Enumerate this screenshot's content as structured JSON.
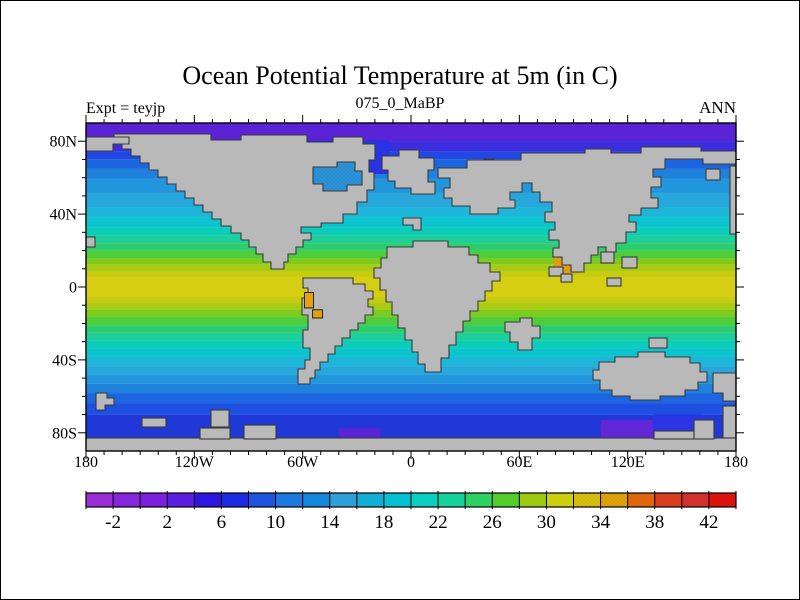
{
  "header": {
    "title": "Ocean Potential Temperature at 5m (in C)",
    "subtitle": "075_0_MaBP",
    "experiment_label": "Expt = teyjp",
    "season_label": "ANN"
  },
  "map": {
    "land_color": "#b9b9b9",
    "coast_color": "#3a3a3a",
    "frame_color": "#000000",
    "x_axis": {
      "tick_labels": [
        "180",
        "120W",
        "60W",
        "0",
        "60E",
        "120E",
        "180"
      ],
      "tick_lons": [
        -180,
        -120,
        -60,
        0,
        60,
        120,
        180
      ],
      "minor_step_deg": 10
    },
    "y_axis": {
      "tick_labels": [
        "80N",
        "40N",
        "0",
        "40S",
        "80S"
      ],
      "tick_lats": [
        80,
        40,
        0,
        -40,
        -80
      ],
      "minor_step_deg": 10
    }
  },
  "colorbar": {
    "units": "C",
    "min": -4,
    "max": 44,
    "step": 2,
    "tick_labels": [
      "-2",
      "2",
      "6",
      "10",
      "14",
      "18",
      "22",
      "26",
      "30",
      "34",
      "38",
      "42"
    ],
    "colors": [
      "#9b2fd6",
      "#8526dc",
      "#7d1fde",
      "#5c1ee0",
      "#2d17e0",
      "#1d2ce2",
      "#1d55e0",
      "#1d79de",
      "#1486dc",
      "#2e9fd8",
      "#12aed4",
      "#04c0d0",
      "#0bcfc0",
      "#16d29b",
      "#2ed163",
      "#52cd2c",
      "#9ecc14",
      "#cdce0d",
      "#d9c40c",
      "#dda70a",
      "#e0660c",
      "#dc3d1c",
      "#d23028",
      "#de120c"
    ],
    "stippled_segments": [
      18,
      19,
      21,
      22
    ]
  },
  "chart_data": {
    "type": "heatmap",
    "title": "Ocean Potential Temperature at 5m (in C)",
    "subtitle": "075_0_MaBP",
    "annotations": [
      "Expt = teyjp",
      "ANN"
    ],
    "units": "degC",
    "projection": "equirectangular",
    "lon_range": [
      -180,
      180
    ],
    "lat_range": [
      -90,
      90
    ],
    "x_tick_labels": [
      "180",
      "120W",
      "60W",
      "0",
      "60E",
      "120E",
      "180"
    ],
    "y_tick_labels": [
      "80N",
      "40N",
      "0",
      "40S",
      "80S"
    ],
    "contour_levels_c": [
      -4,
      -2,
      0,
      2,
      4,
      6,
      8,
      10,
      12,
      14,
      16,
      18,
      20,
      22,
      24,
      26,
      28,
      30,
      32,
      34,
      36,
      38,
      40,
      42,
      44
    ],
    "zonal_mean_temp": {
      "lat": [
        80,
        70,
        60,
        50,
        40,
        30,
        20,
        10,
        0,
        -10,
        -20,
        -30,
        -40,
        -50,
        -60,
        -70,
        -80
      ],
      "temp_c": [
        0,
        4,
        8,
        12,
        16,
        21,
        26,
        28.5,
        29,
        28.5,
        26,
        21,
        16,
        11,
        7,
        4,
        1
      ]
    },
    "ocean_bands": [
      [
        90,
        80.1,
        "#5b23d6"
      ],
      [
        80.1,
        74.6,
        "#3c2ede"
      ],
      [
        74.6,
        70.2,
        "#2347e2"
      ],
      [
        70.2,
        64.8,
        "#1b66e0"
      ],
      [
        64.8,
        59.3,
        "#1e82dd"
      ],
      [
        59.3,
        51.6,
        "#2196dd"
      ],
      [
        51.6,
        43.9,
        "#27a7dc"
      ],
      [
        43.9,
        38.4,
        "#1fb7d9"
      ],
      [
        38.4,
        32.9,
        "#0cc4cf"
      ],
      [
        32.9,
        28.5,
        "#0ccdbb"
      ],
      [
        28.5,
        24.1,
        "#1ecf9c"
      ],
      [
        24.1,
        19.8,
        "#2ecd6e"
      ],
      [
        19.8,
        15.9,
        "#4ecc3a"
      ],
      [
        15.9,
        12.6,
        "#7ccc1f"
      ],
      [
        12.6,
        8.8,
        "#a8cc14"
      ],
      [
        8.8,
        5.5,
        "#c6cc10"
      ],
      [
        5.5,
        -5.5,
        "#d6ce12"
      ],
      [
        -5.5,
        -8.8,
        "#c6cc10"
      ],
      [
        -8.8,
        -12.6,
        "#a8cc14"
      ],
      [
        -12.6,
        -16.5,
        "#7ccc1f"
      ],
      [
        -16.5,
        -20.9,
        "#4ecc3a"
      ],
      [
        -20.9,
        -25.2,
        "#2ecd6e"
      ],
      [
        -25.2,
        -29.6,
        "#1ecf9c"
      ],
      [
        -29.6,
        -34,
        "#0ccdbb"
      ],
      [
        -34,
        -38.4,
        "#0cc4cf"
      ],
      [
        -38.4,
        -43.4,
        "#1fb7d9"
      ],
      [
        -43.4,
        -48.3,
        "#27a7dc"
      ],
      [
        -48.3,
        -53.2,
        "#2196dd"
      ],
      [
        -53.2,
        -58.2,
        "#1e82dd"
      ],
      [
        -58.2,
        -63.7,
        "#1b66e0"
      ],
      [
        -63.7,
        -70.2,
        "#1d4fe0"
      ],
      [
        -70.2,
        -90,
        "#2038d8"
      ]
    ],
    "features": [
      {
        "name": "north-atlantic-cold-strait",
        "lon": [
          -62,
          -12
        ],
        "lat": [
          62,
          80.5
        ],
        "color": "#2733e4",
        "above_land": false
      },
      {
        "name": "interior-sea-warm-fill",
        "lon": [
          -54,
          -27
        ],
        "lat": [
          53,
          68.5
        ],
        "color": "#2196dd",
        "above_land": false
      },
      {
        "name": "tethys-warm-patch",
        "lon": [
          79,
          94
        ],
        "lat": [
          7.5,
          16
        ],
        "color": "#e2a30c",
        "above_land": false
      },
      {
        "name": "weddell-cold-patch",
        "lon": [
          -40,
          -17
        ],
        "lat": [
          -83,
          -77.5
        ],
        "color": "#5b23d6",
        "above_land": false
      },
      {
        "name": "austral-cold-purple-patch",
        "lon": [
          105,
          134
        ],
        "lat": [
          -83,
          -73
        ],
        "color": "#6227d6",
        "above_land": false
      },
      {
        "name": "austral-cold-blue-patch",
        "lon": [
          134,
          162
        ],
        "lat": [
          -83,
          -70
        ],
        "color": "#2b35e6",
        "above_land": false
      },
      {
        "name": "south-america-warm-inland-1",
        "lon": [
          -59,
          -54
        ],
        "lat": [
          -11.5,
          -3
        ],
        "color": "#e2a30c",
        "above_land": true
      },
      {
        "name": "south-america-warm-inland-2",
        "lon": [
          -54.5,
          -49
        ],
        "lat": [
          -17,
          -12.5
        ],
        "color": "#e2a30c",
        "above_land": true
      }
    ]
  }
}
